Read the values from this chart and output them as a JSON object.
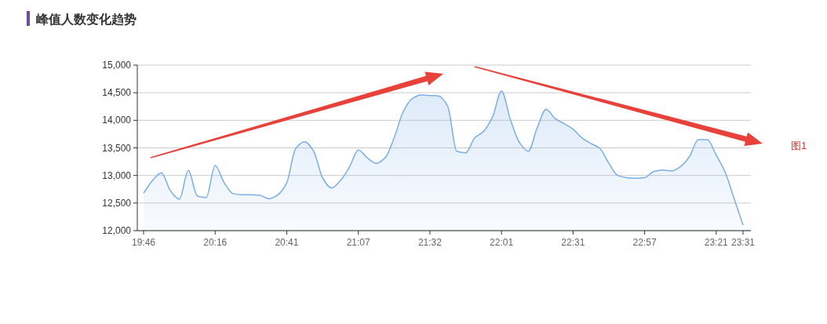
{
  "chart_data": {
    "type": "area",
    "title": "峰值人数变化趋势",
    "categories": [
      "19:46",
      null,
      null,
      null,
      null,
      null,
      null,
      null,
      "20:16",
      null,
      null,
      null,
      null,
      null,
      null,
      null,
      "20:41",
      null,
      null,
      null,
      null,
      null,
      null,
      null,
      "21:07",
      null,
      null,
      null,
      null,
      null,
      null,
      null,
      "21:32",
      null,
      null,
      null,
      null,
      null,
      null,
      null,
      "22:01",
      null,
      null,
      null,
      null,
      null,
      null,
      null,
      "22:31",
      null,
      null,
      null,
      null,
      null,
      null,
      null,
      "22:57",
      null,
      null,
      null,
      null,
      null,
      null,
      null,
      "23:21",
      null,
      null,
      "23:31"
    ],
    "series": [
      {
        "color": "#7aaee8",
        "values": [
          12680,
          12910,
          13050,
          12720,
          12570,
          13090,
          12630,
          12600,
          13180,
          12870,
          12670,
          12650,
          12650,
          12640,
          12580,
          12650,
          12870,
          13490,
          13610,
          13440,
          12960,
          12770,
          12910,
          13150,
          13460,
          13320,
          13220,
          13320,
          13680,
          14150,
          14390,
          14460,
          14450,
          14440,
          14250,
          13440,
          13410,
          13680,
          13800,
          14060,
          14530,
          14010,
          13600,
          13440,
          13870,
          14200,
          14030,
          13940,
          13840,
          13680,
          13580,
          13490,
          13220,
          13000,
          12960,
          12950,
          12960,
          13070,
          13100,
          13080,
          13160,
          13340,
          13650,
          13650,
          13370,
          13060,
          12580,
          12100
        ]
      }
    ],
    "ylim": [
      12000,
      15000
    ],
    "yticks": [
      {
        "value": 12000,
        "label": "12,000"
      },
      {
        "value": 12500,
        "label": "12,500"
      },
      {
        "value": 13000,
        "label": "13,000"
      },
      {
        "value": 13500,
        "label": "13,500"
      },
      {
        "value": 14000,
        "label": "14,000"
      },
      {
        "value": 14500,
        "label": "14,500"
      },
      {
        "value": 15000,
        "label": "15,000"
      }
    ],
    "grid": "y",
    "annotations": [
      "图1"
    ]
  }
}
